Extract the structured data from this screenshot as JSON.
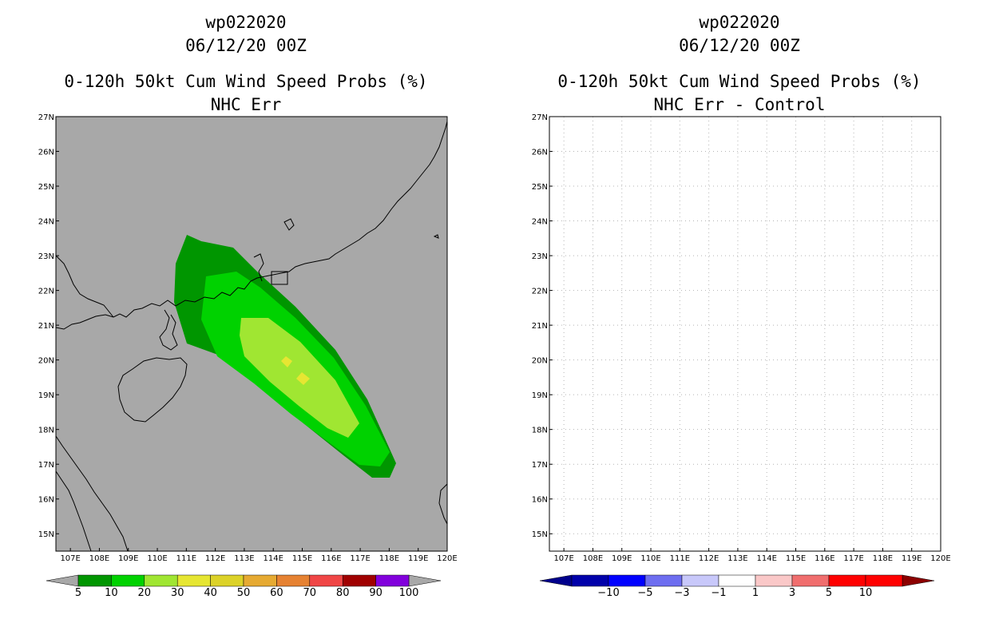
{
  "left_panel": {
    "storm_id": "wp022020",
    "datetime": "06/12/20 00Z",
    "title": "0-120h 50kt Cum Wind Speed Probs (%)",
    "subtitle": "NHC Err",
    "background_color": "#a8a8a8"
  },
  "right_panel": {
    "storm_id": "wp022020",
    "datetime": "06/12/20 00Z",
    "title": "0-120h 50kt Cum Wind Speed Probs (%)",
    "subtitle": "NHC Err - Control",
    "background_color": "#ffffff"
  },
  "map": {
    "lon_labels": [
      "107E",
      "108E",
      "109E",
      "110E",
      "111E",
      "112E",
      "113E",
      "114E",
      "115E",
      "116E",
      "117E",
      "118E",
      "119E",
      "120E"
    ],
    "lat_labels": [
      "27N",
      "26N",
      "25N",
      "24N",
      "23N",
      "22N",
      "21N",
      "20N",
      "19N",
      "18N",
      "17N",
      "16N",
      "15N"
    ],
    "lon_range": [
      106.5,
      120
    ],
    "lat_range": [
      14.5,
      27
    ]
  },
  "chart_data": {
    "type": "heatmap",
    "left_colorbar": {
      "labels": [
        "5",
        "10",
        "20",
        "30",
        "40",
        "50",
        "60",
        "70",
        "80",
        "90",
        "100"
      ],
      "colors": [
        "#009600",
        "#00d200",
        "#a0e632",
        "#e6e632",
        "#dcd228",
        "#e6aa32",
        "#e68232",
        "#f04646",
        "#a00000",
        "#8200dc"
      ],
      "under_color": "#a8a8a8",
      "over_color": "#a8a8a8"
    },
    "right_colorbar": {
      "labels": [
        "-10",
        "-5",
        "-3",
        "-1",
        "1",
        "3",
        "5",
        "10"
      ],
      "colors": [
        "#0000aa",
        "#0000ff",
        "#6e6ef0",
        "#c8c8fa",
        "#ffffff",
        "#fac8c8",
        "#f06e6e",
        "#ff0000",
        "#ff0000"
      ],
      "under_color": "#00008c",
      "over_color": "#8c0000"
    },
    "probability_contours": [
      {
        "level": "5",
        "color": "#009600"
      },
      {
        "level": "10",
        "color": "#00d200"
      },
      {
        "level": "20",
        "color": "#a0e632"
      },
      {
        "level": "30",
        "color": "#e6e632"
      }
    ]
  }
}
